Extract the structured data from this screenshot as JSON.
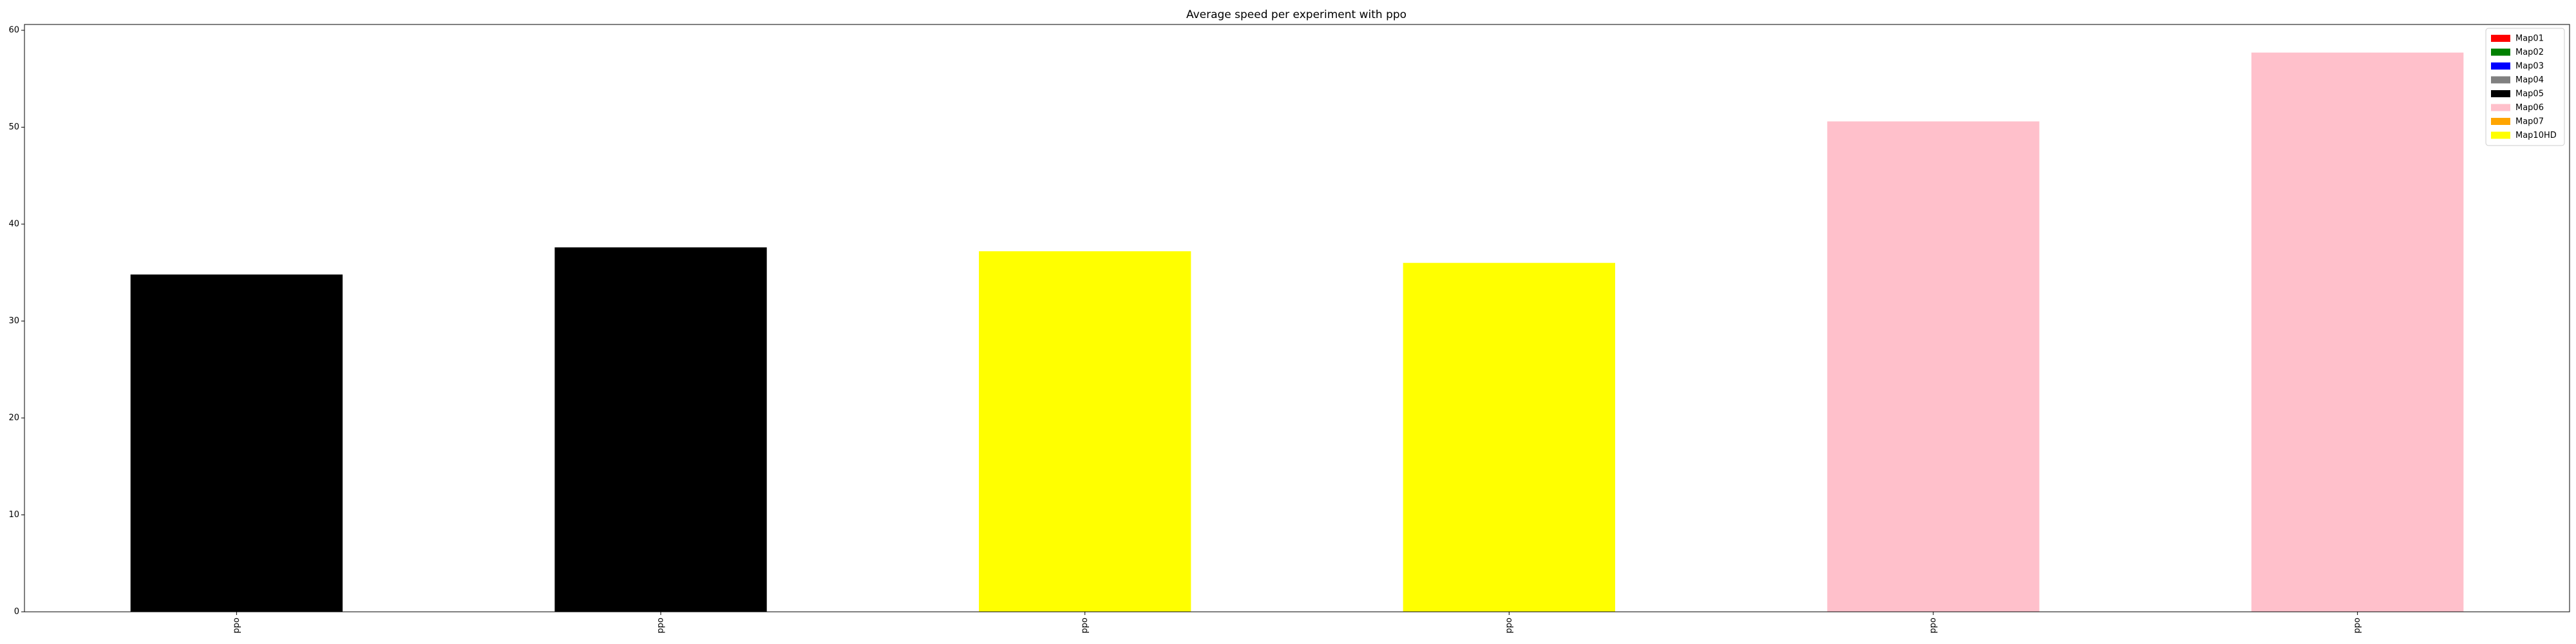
{
  "chart_data": {
    "type": "bar",
    "title": "Average speed per experiment with ppo",
    "xlabel": "",
    "ylabel": "",
    "categories": [
      "ppo",
      "ppo",
      "ppo",
      "ppo",
      "ppo",
      "ppo"
    ],
    "values": [
      34.8,
      37.6,
      37.2,
      36.0,
      50.6,
      57.7
    ],
    "bar_colors": [
      "#000000",
      "#000000",
      "#ffff00",
      "#ffff00",
      "#ffc0cb",
      "#ffc0cb"
    ],
    "ylim": [
      0,
      60.6
    ],
    "yticks": [
      0,
      10,
      20,
      30,
      40,
      50,
      60
    ],
    "grid": false,
    "legend": {
      "placement": "top-right",
      "entries": [
        {
          "label": "Map01",
          "color": "#ff0000"
        },
        {
          "label": "Map02",
          "color": "#008000"
        },
        {
          "label": "Map03",
          "color": "#0000ff"
        },
        {
          "label": "Map04",
          "color": "#808080"
        },
        {
          "label": "Map05",
          "color": "#000000"
        },
        {
          "label": "Map06",
          "color": "#ffc0cb"
        },
        {
          "label": "Map07",
          "color": "#ffa500"
        },
        {
          "label": "Map10HD",
          "color": "#ffff00"
        }
      ]
    }
  }
}
